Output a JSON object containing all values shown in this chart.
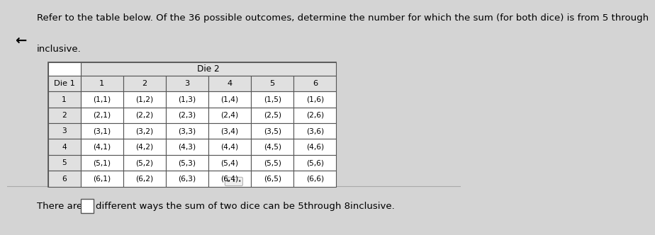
{
  "title_text": "Refer to the table below. Of the 36 possible outcomes, determine the number for which the sum (for both dice) is from 5 through",
  "title_line2": "inclusive.",
  "header_row1": [
    "Die 1",
    "1",
    "2",
    "3",
    "4",
    "5",
    "6"
  ],
  "rows": [
    [
      "1",
      "(1,1)",
      "(1,2)",
      "(1,3)",
      "(1,4)",
      "(1,5)",
      "(1,6)"
    ],
    [
      "2",
      "(2,1)",
      "(2,2)",
      "(2,3)",
      "(2,4)",
      "(2,5)",
      "(2,6)"
    ],
    [
      "3",
      "(3,1)",
      "(3,2)",
      "(3,3)",
      "(3,4)",
      "(3,5)",
      "(3,6)"
    ],
    [
      "4",
      "(4,1)",
      "(4,2)",
      "(4,3)",
      "(4,4)",
      "(4,5)",
      "(4,6)"
    ],
    [
      "5",
      "(5,1)",
      "(5,2)",
      "(5,3)",
      "(5,4)",
      "(5,5)",
      "(5,6)"
    ],
    [
      "6",
      "(6,1)",
      "(6,2)",
      "(6,3)",
      "(6,4)",
      "(6,5)",
      "(6,6)"
    ]
  ],
  "footer_text": "There are",
  "footer_text2": "different ways the sum of two dice can be 5through 8inclusive.",
  "bg_color": "#d4d4d4",
  "table_bg": "#ffffff",
  "header_bg": "#e0e0e0",
  "text_color": "#000000",
  "font_size_title": 9.5,
  "font_size_table": 8.2,
  "font_size_footer": 9.5,
  "arrow_symbol": "←"
}
